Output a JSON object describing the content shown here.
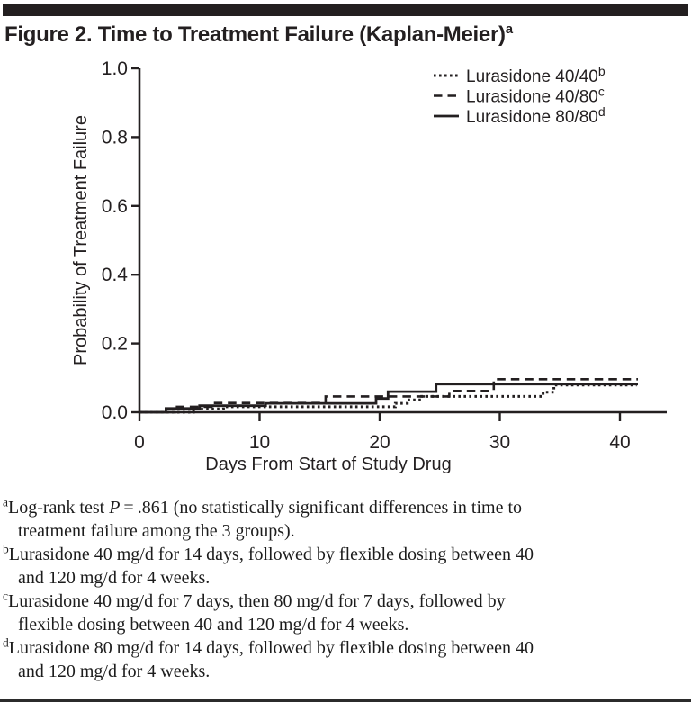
{
  "title": {
    "text": "Figure 2. Time to Treatment Failure (Kaplan-Meier)",
    "sup": "a"
  },
  "colors": {
    "ink": "#231f20",
    "background": "#ffffff"
  },
  "chart_data": {
    "type": "line",
    "step": true,
    "title": "",
    "xlabel": "Days From Start of Study Drug",
    "ylabel": "Probability of Treatment Failure",
    "xlim": [
      0,
      44
    ],
    "ylim": [
      0,
      1.0
    ],
    "xticks": [
      "0",
      "10",
      "20",
      "30",
      "40"
    ],
    "yticks": [
      "0.0",
      "0.2",
      "0.4",
      "0.6",
      "0.8",
      "1.0"
    ],
    "grid": false,
    "legend_position": "top-right-inside",
    "series": [
      {
        "name": "Lurasidone 40/40",
        "sup": "b",
        "line_style": "dotted",
        "points": [
          [
            0,
            0
          ],
          [
            4.5,
            0.01
          ],
          [
            7,
            0.016
          ],
          [
            21.3,
            0.026
          ],
          [
            22.3,
            0.036
          ],
          [
            23.5,
            0.046
          ],
          [
            33.6,
            0.058
          ],
          [
            34.5,
            0.079
          ],
          [
            41.4,
            0.079
          ]
        ]
      },
      {
        "name": "Lurasidone 40/80",
        "sup": "c",
        "line_style": "dashed",
        "points": [
          [
            0,
            0
          ],
          [
            3,
            0.016
          ],
          [
            6,
            0.027
          ],
          [
            15.5,
            0.046
          ],
          [
            25.8,
            0.062
          ],
          [
            29.5,
            0.096
          ],
          [
            41.5,
            0.096
          ]
        ]
      },
      {
        "name": "Lurasidone 80/80",
        "sup": "d",
        "line_style": "solid",
        "points": [
          [
            0,
            0
          ],
          [
            2.2,
            0.011
          ],
          [
            5,
            0.019
          ],
          [
            10.5,
            0.026
          ],
          [
            19.7,
            0.04
          ],
          [
            20.7,
            0.06
          ],
          [
            24.7,
            0.082
          ],
          [
            41.5,
            0.082
          ]
        ]
      }
    ]
  },
  "footnotes": [
    {
      "sup": "a",
      "segments": [
        {
          "text": "Log-rank test "
        },
        {
          "text": "P",
          "italic": true
        },
        {
          "text": " = .861 (no statistically significant differences in time to\ntreatment failure among the 3 groups)."
        }
      ]
    },
    {
      "sup": "b",
      "segments": [
        {
          "text": "Lurasidone 40 mg/d for 14 days, followed by flexible dosing between 40\nand 120 mg/d for 4 weeks."
        }
      ]
    },
    {
      "sup": "c",
      "segments": [
        {
          "text": "Lurasidone 40 mg/d for 7 days, then 80 mg/d for 7 days, followed by\nflexible dosing between 40 and 120 mg/d for 4 weeks."
        }
      ]
    },
    {
      "sup": "d",
      "segments": [
        {
          "text": "Lurasidone 80 mg/d for 14 days, followed by flexible dosing between 40\nand 120 mg/d for 4 weeks."
        }
      ]
    }
  ]
}
